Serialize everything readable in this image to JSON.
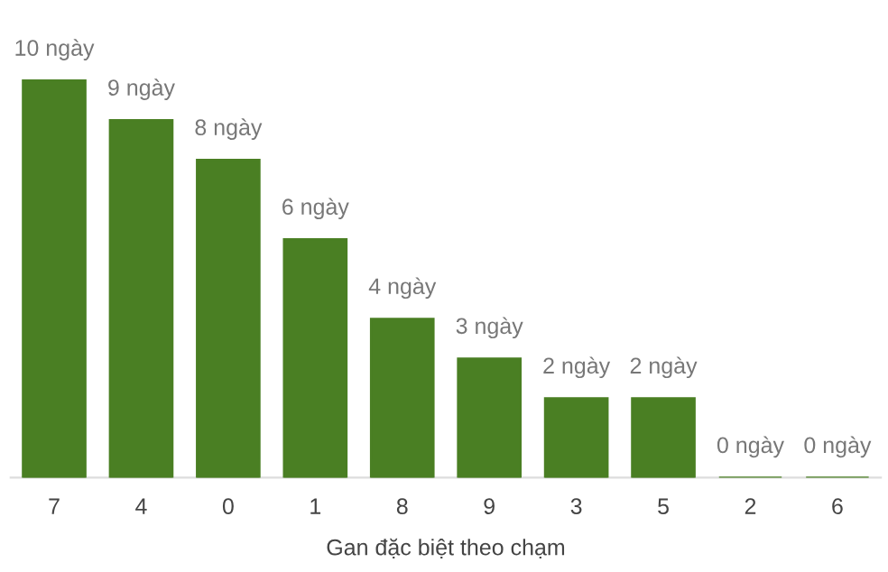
{
  "chart_data": {
    "type": "bar",
    "xlabel": "Gan đặc biệt theo chạm",
    "categories": [
      "7",
      "4",
      "0",
      "1",
      "8",
      "9",
      "3",
      "5",
      "2",
      "6"
    ],
    "values": [
      10,
      9,
      8,
      6,
      4,
      3,
      2,
      2,
      0,
      0
    ],
    "value_labels": [
      "10 ngày",
      "9 ngày",
      "8 ngày",
      "6 ngày",
      "4 ngày",
      "3 ngày",
      "2 ngày",
      "2 ngày",
      "0 ngày",
      "0 ngày"
    ],
    "color": "#4a7f23",
    "grid": false,
    "legend": false,
    "tick_labels": "x"
  }
}
